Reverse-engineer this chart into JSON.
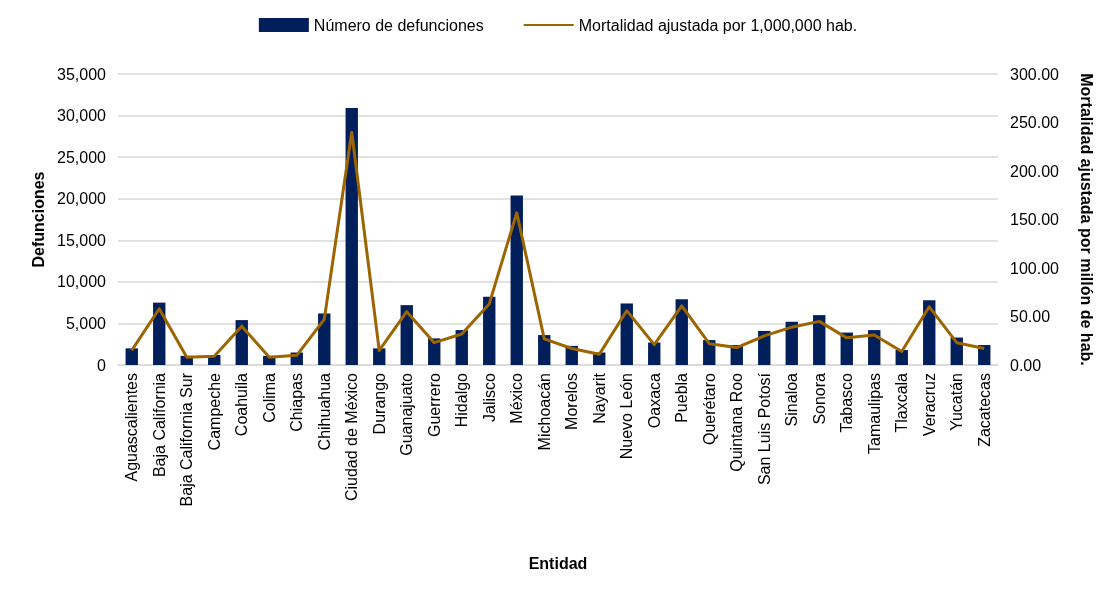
{
  "chart_data": {
    "type": "bar",
    "xlabel": "Entidad",
    "ylabel": "Defunciones",
    "y2label": "Mortalidad ajustada por millón de hab.",
    "categories": [
      "Aguascalientes",
      "Baja California",
      "Baja California Sur",
      "Campeche",
      "Coahuila",
      "Colima",
      "Chiapas",
      "Chihuahua",
      "Ciudad de México",
      "Durango",
      "Guanajuato",
      "Guerrero",
      "Hidalgo",
      "Jalisco",
      "México",
      "Michoacán",
      "Morelos",
      "Nayarit",
      "Nuevo León",
      "Oaxaca",
      "Puebla",
      "Querétaro",
      "Quintana Roo",
      "San Luis Potosí",
      "Sinaloa",
      "Sonora",
      "Tabasco",
      "Tamaulipas",
      "Tlaxcala",
      "Veracruz",
      "Yucatán",
      "Zacatecas"
    ],
    "series": [
      {
        "name": "Número de defunciones",
        "color": "#001f5b",
        "values": [
          2000,
          7500,
          1100,
          1200,
          5400,
          1100,
          1500,
          6200,
          30900,
          2000,
          7200,
          3200,
          4200,
          8200,
          20400,
          3600,
          2300,
          1500,
          7400,
          2700,
          7900,
          3000,
          2400,
          4100,
          5200,
          6000,
          3900,
          4200,
          1800,
          7800,
          3300,
          2400
        ]
      },
      {
        "name": "Mortalidad ajustada por 1,000,000 hab.",
        "type": "line",
        "axis": "y2",
        "color": "#9c6500",
        "values": [
          15,
          58,
          8,
          9,
          40,
          8,
          10,
          47,
          240,
          15,
          55,
          23,
          32,
          63,
          157,
          27,
          17,
          11,
          56,
          21,
          61,
          22,
          18,
          30,
          39,
          45,
          28,
          31,
          14,
          60,
          23,
          17
        ]
      }
    ],
    "ylim": [
      0,
      35000
    ],
    "yticks": [
      {
        "value": 0,
        "label": "0"
      },
      {
        "value": 5000,
        "label": "5,000"
      },
      {
        "value": 10000,
        "label": "10,000"
      },
      {
        "value": 15000,
        "label": "15,000"
      },
      {
        "value": 20000,
        "label": "20,000"
      },
      {
        "value": 25000,
        "label": "25,000"
      },
      {
        "value": 30000,
        "label": "30,000"
      },
      {
        "value": 35000,
        "label": "35,000"
      }
    ],
    "y2lim": [
      0,
      300
    ],
    "y2ticks": [
      {
        "value": 0,
        "label": "0.00"
      },
      {
        "value": 50,
        "label": "50.00"
      },
      {
        "value": 100,
        "label": "100.00"
      },
      {
        "value": 150,
        "label": "150.00"
      },
      {
        "value": 200,
        "label": "200.00"
      },
      {
        "value": 250,
        "label": "250.00"
      },
      {
        "value": 300,
        "label": "300.00"
      }
    ],
    "grid": "y",
    "legend": "top",
    "marker": "none",
    "line_style": "solid"
  }
}
